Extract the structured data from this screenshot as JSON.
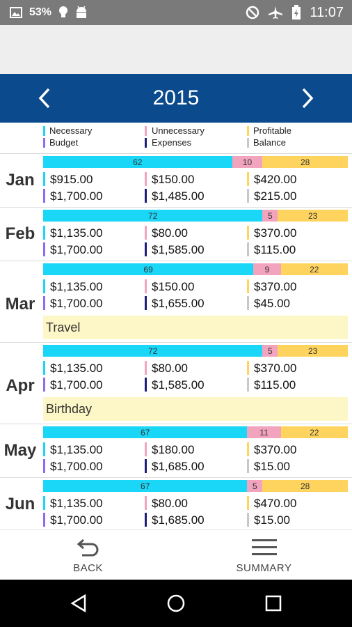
{
  "status_bar": {
    "battery_percent": "53%",
    "time": "11:07",
    "icons": [
      "image-icon",
      "bulb-icon",
      "android-icon",
      "do-not-disturb-icon",
      "airplane-icon",
      "battery-icon"
    ]
  },
  "header": {
    "year": "2015",
    "prev_icon": "chevron-left-icon",
    "next_icon": "chevron-right-icon"
  },
  "colors": {
    "necessary": "#1ad6f7",
    "unnecessary": "#f2a3be",
    "profitable": "#ffd45e",
    "budget": "#8d6cf0",
    "expenses": "#1c1e7a",
    "balance": "#c8c8c8",
    "header_blue": "#0b4a8c",
    "note_bg": "#fdf6c6"
  },
  "legend": [
    {
      "label": "Necessary",
      "color": "#1ad6f7"
    },
    {
      "label": "Unnecessary",
      "color": "#f2a3be"
    },
    {
      "label": "Profitable",
      "color": "#ffd45e"
    },
    {
      "label": "Budget",
      "color": "#8d6cf0"
    },
    {
      "label": "Expenses",
      "color": "#1c1e7a"
    },
    {
      "label": "Balance",
      "color": "#c8c8c8"
    }
  ],
  "months": [
    {
      "name": "Jan",
      "pct": [
        62,
        10,
        28
      ],
      "pct_labels": [
        "62",
        "10",
        "28"
      ],
      "necessary": "$915.00",
      "unnecessary": "$150.00",
      "profitable": "$420.00",
      "budget": "$1,700.00",
      "expenses": "$1,485.00",
      "balance": "$215.00",
      "note": ""
    },
    {
      "name": "Feb",
      "pct": [
        72,
        5,
        23
      ],
      "pct_labels": [
        "72",
        "5",
        "23"
      ],
      "necessary": "$1,135.00",
      "unnecessary": "$80.00",
      "profitable": "$370.00",
      "budget": "$1,700.00",
      "expenses": "$1,585.00",
      "balance": "$115.00",
      "note": ""
    },
    {
      "name": "Mar",
      "pct": [
        69,
        9,
        22
      ],
      "pct_labels": [
        "69",
        "9",
        "22"
      ],
      "necessary": "$1,135.00",
      "unnecessary": "$150.00",
      "profitable": "$370.00",
      "budget": "$1,700.00",
      "expenses": "$1,655.00",
      "balance": "$45.00",
      "note": "Travel"
    },
    {
      "name": "Apr",
      "pct": [
        72,
        5,
        23
      ],
      "pct_labels": [
        "72",
        "5",
        "23"
      ],
      "necessary": "$1,135.00",
      "unnecessary": "$80.00",
      "profitable": "$370.00",
      "budget": "$1,700.00",
      "expenses": "$1,585.00",
      "balance": "$115.00",
      "note": "Birthday"
    },
    {
      "name": "May",
      "pct": [
        67,
        11,
        22
      ],
      "pct_labels": [
        "67",
        "11",
        "22"
      ],
      "necessary": "$1,135.00",
      "unnecessary": "$180.00",
      "profitable": "$370.00",
      "budget": "$1,700.00",
      "expenses": "$1,685.00",
      "balance": "$15.00",
      "note": ""
    },
    {
      "name": "Jun",
      "pct": [
        67,
        5,
        28
      ],
      "pct_labels": [
        "67",
        "5",
        "28"
      ],
      "necessary": "$1,135.00",
      "unnecessary": "$80.00",
      "profitable": "$470.00",
      "budget": "$1,700.00",
      "expenses": "$1,685.00",
      "balance": "$15.00",
      "note": ""
    }
  ],
  "bottom_actions": {
    "back_label": "BACK",
    "back_icon": "undo-arrow-icon",
    "summary_label": "SUMMARY",
    "summary_icon": "list-icon"
  },
  "nav_bar": {
    "icons": [
      "back-triangle-icon",
      "home-circle-icon",
      "recents-square-icon"
    ]
  }
}
